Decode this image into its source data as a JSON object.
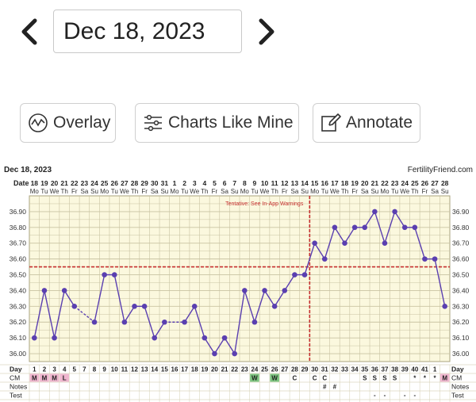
{
  "nav": {
    "date_value": "Dec 18, 2023",
    "prev_icon": "chevron-left-icon",
    "next_icon": "chevron-right-icon"
  },
  "toolbar": {
    "overlay_label": "Overlay",
    "overlay_icon": "wave-circle-icon",
    "charts_like_mine_label": "Charts Like Mine",
    "charts_like_mine_icon": "sliders-icon",
    "annotate_label": "Annotate",
    "annotate_icon": "edit-icon"
  },
  "colors": {
    "chart_bg": "#fbf8de",
    "grid": "#c9c3a2",
    "line": "#5a3fb0",
    "coverline": "#c62f2f",
    "menses": "#f0b6cf",
    "cm_w": "#7bc47f"
  },
  "chart_header": {
    "date": "Dec 18, 2023",
    "brand": "FertilityFriend.com",
    "warning": "Tentative: See In-App Warnings"
  },
  "row_labels": {
    "date": "Date",
    "day": "Day",
    "cm": "CM",
    "notes": "Notes",
    "test": "Test"
  },
  "chart_data": {
    "type": "line",
    "dates": [
      "18",
      "19",
      "20",
      "21",
      "22",
      "23",
      "24",
      "25",
      "26",
      "27",
      "28",
      "29",
      "30",
      "31",
      "1",
      "2",
      "3",
      "4",
      "5",
      "6",
      "7",
      "8",
      "9",
      "10",
      "11",
      "12",
      "13",
      "14",
      "15",
      "16",
      "17",
      "18",
      "19",
      "20",
      "21",
      "22",
      "23",
      "24",
      "25",
      "26",
      "27",
      "28"
    ],
    "weekdays": [
      "Mo",
      "Tu",
      "We",
      "Th",
      "Fr",
      "Sa",
      "Su",
      "Mo",
      "Tu",
      "We",
      "Th",
      "Fr",
      "Sa",
      "Su",
      "Mo",
      "Tu",
      "We",
      "Th",
      "Fr",
      "Sa",
      "Su",
      "Mo",
      "Tu",
      "We",
      "Th",
      "Fr",
      "Sa",
      "Su",
      "Mo",
      "Tu",
      "We",
      "Th",
      "Fr",
      "Sa",
      "Su",
      "Mo",
      "Tu",
      "We",
      "Th",
      "Fr",
      "Sa",
      "Su"
    ],
    "cycle_days": [
      "1",
      "2",
      "3",
      "4",
      "5",
      "7",
      "8",
      "9",
      "10",
      "11",
      "12",
      "13",
      "14",
      "15",
      "16",
      "17",
      "18",
      "19",
      "20",
      "21",
      "22",
      "23",
      "24",
      "25",
      "26",
      "27",
      "28",
      "29",
      "30",
      "31",
      "32",
      "33",
      "34",
      "35",
      "36",
      "37",
      "38",
      "39",
      "40",
      "41",
      "1",
      ""
    ],
    "temps": [
      36.1,
      36.4,
      36.1,
      36.4,
      36.3,
      null,
      36.2,
      36.5,
      36.5,
      36.2,
      36.3,
      36.3,
      36.1,
      36.2,
      null,
      36.2,
      36.3,
      36.1,
      36.0,
      36.1,
      36.0,
      36.4,
      36.2,
      36.4,
      36.3,
      36.4,
      36.5,
      36.5,
      36.7,
      36.6,
      36.8,
      36.7,
      36.8,
      36.8,
      36.9,
      36.7,
      36.9,
      36.8,
      36.8,
      36.6,
      36.6,
      36.3
    ],
    "cm": [
      "M",
      "M",
      "M",
      "L",
      "",
      "",
      "",
      "",
      "",
      "",
      "",
      "",
      "",
      "",
      "",
      "",
      "",
      "",
      "",
      "",
      "",
      "",
      "W",
      "",
      "W",
      "",
      "C",
      "",
      "C",
      "C",
      "",
      "",
      "",
      "S",
      "S",
      "S",
      "S",
      "",
      "*",
      "*",
      "*",
      "M"
    ],
    "notes": [
      "",
      "",
      "",
      "",
      "",
      "",
      "",
      "",
      "",
      "",
      "",
      "",
      "",
      "",
      "",
      "",
      "",
      "",
      "",
      "",
      "",
      "",
      "",
      "",
      "",
      "",
      "",
      "",
      "",
      "#",
      "#",
      "",
      "",
      "",
      "",
      "",
      "",
      "",
      "",
      "",
      "",
      ""
    ],
    "test": [
      "",
      "",
      "",
      "",
      "",
      "",
      "",
      "",
      "",
      "",
      "",
      "",
      "",
      "",
      "",
      "",
      "",
      "",
      "",
      "",
      "",
      "",
      "",
      "",
      "",
      "",
      "",
      "",
      "",
      "",
      "",
      "",
      "",
      "",
      "-",
      "-",
      "",
      "-",
      "-",
      "",
      "",
      ""
    ],
    "y_ticks": [
      "36.90",
      "36.80",
      "36.70",
      "36.60",
      "36.50",
      "36.40",
      "36.30",
      "36.20",
      "36.10",
      "36.00"
    ],
    "ylim": [
      35.95,
      37.0
    ],
    "coverline": 36.55,
    "ovulation_day_index": 27
  }
}
